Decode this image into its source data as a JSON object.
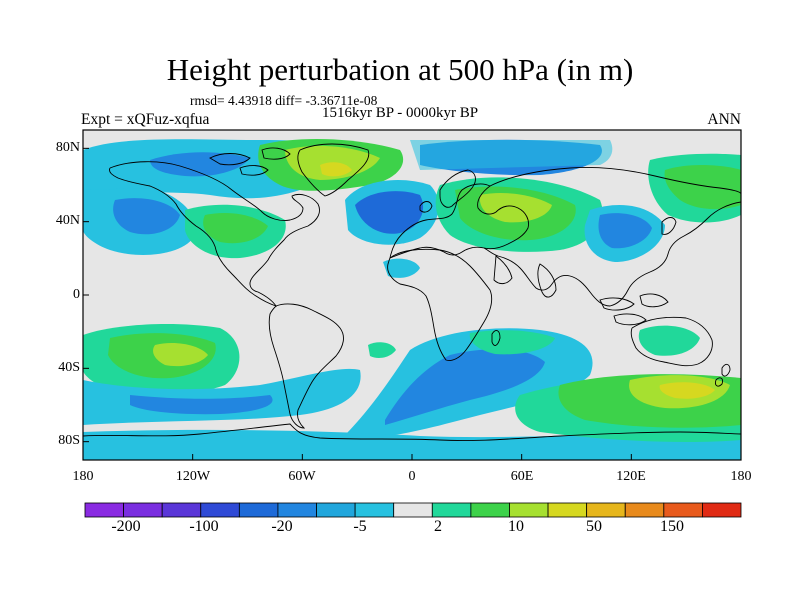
{
  "title": "Height perturbation at 500 hPa (in m)",
  "stats": "rmsd= 4.43918 diff= -3.36711e-08",
  "period": "1516kyr BP - 0000kyr BP",
  "experiment": "Expt = xQFuz-xqfua",
  "season": "ANN",
  "map": {
    "projection": "equirectangular",
    "lon_range": [
      -180,
      180
    ],
    "lat_range": [
      -90,
      90
    ],
    "lat_labels": [
      "80N",
      "40N",
      "0",
      "40S",
      "80S"
    ],
    "lon_labels": [
      "180",
      "120W",
      "60W",
      "0",
      "60E",
      "120E",
      "180"
    ],
    "background_color": "#e6e6e6",
    "coast_color": "#000000"
  },
  "colorbar": {
    "colors": [
      "#8a2be2",
      "#7a2ee0",
      "#5a36d8",
      "#2f4ad6",
      "#1e6ad8",
      "#2286e0",
      "#21a6dc",
      "#27c1e0",
      "#e6e6e6",
      "#21d89a",
      "#3dd24a",
      "#a6e030",
      "#d6d820",
      "#e6b61c",
      "#e88a1c",
      "#e85a1c",
      "#e02a14"
    ],
    "tick_labels": [
      "-200",
      "-100",
      "-20",
      "-5",
      "2",
      "10",
      "50",
      "150"
    ]
  },
  "field_regions": [
    {
      "region": "Greenland / North Atlantic high",
      "level": 10,
      "color": "#3dd24a"
    },
    {
      "region": "Greenland core",
      "level": 20,
      "color": "#a6e030"
    },
    {
      "region": "North Atlantic low",
      "level": -20,
      "color": "#1e6ad8"
    },
    {
      "region": "Eurasia high",
      "level": 10,
      "color": "#3dd24a"
    },
    {
      "region": "Southern Ocean low",
      "level": -5,
      "color": "#27c1e0"
    },
    {
      "region": "South Pacific high",
      "level": 10,
      "color": "#a6e030"
    },
    {
      "region": "Southwest Pacific high",
      "level": 10,
      "color": "#a6e030"
    }
  ]
}
